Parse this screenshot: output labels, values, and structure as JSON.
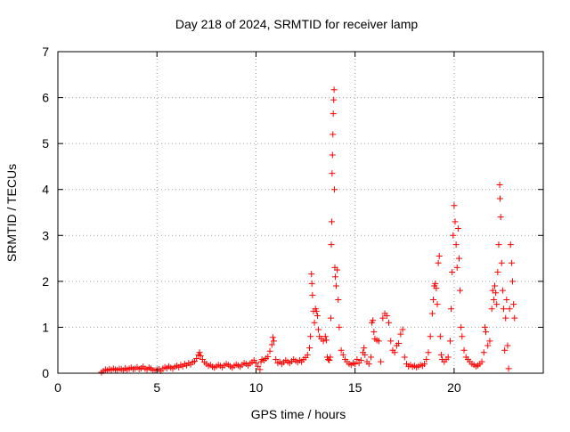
{
  "chart_data": {
    "type": "scatter",
    "title": "Day 218 of 2024, SRMTID for receiver lamp",
    "xlabel": "GPS time / hours",
    "ylabel": "SRMTID / TECUs",
    "xlim": [
      0,
      24.5
    ],
    "ylim": [
      0,
      7
    ],
    "xticks": [
      0,
      5,
      10,
      15,
      20
    ],
    "yticks": [
      0,
      1,
      2,
      3,
      4,
      5,
      6,
      7
    ],
    "xtick_labels": [
      "0",
      "5",
      "10",
      "15",
      "20"
    ],
    "ytick_labels": [
      "0",
      "1",
      "2",
      "3",
      "4",
      "5",
      "6",
      "7"
    ],
    "grid": true,
    "marker": "plus",
    "color": "#ff0000",
    "series": [
      {
        "name": "SRMTID",
        "points": [
          [
            2.2,
            0.02
          ],
          [
            2.3,
            0.05
          ],
          [
            2.4,
            0.08
          ],
          [
            2.5,
            0.06
          ],
          [
            2.6,
            0.09
          ],
          [
            2.7,
            0.07
          ],
          [
            2.8,
            0.1
          ],
          [
            2.9,
            0.08
          ],
          [
            3.0,
            0.07
          ],
          [
            3.1,
            0.1
          ],
          [
            3.2,
            0.09
          ],
          [
            3.3,
            0.06
          ],
          [
            3.4,
            0.11
          ],
          [
            3.5,
            0.08
          ],
          [
            3.6,
            0.1
          ],
          [
            3.7,
            0.12
          ],
          [
            3.8,
            0.09
          ],
          [
            3.9,
            0.1
          ],
          [
            4.0,
            0.13
          ],
          [
            4.1,
            0.09
          ],
          [
            4.2,
            0.11
          ],
          [
            4.3,
            0.14
          ],
          [
            4.4,
            0.1
          ],
          [
            4.5,
            0.08
          ],
          [
            4.6,
            0.12
          ],
          [
            4.7,
            0.1
          ],
          [
            4.8,
            0.07
          ],
          [
            4.9,
            0.06
          ],
          [
            5.0,
            0.08
          ],
          [
            5.1,
            0.09
          ],
          [
            5.2,
            0.05
          ],
          [
            5.3,
            0.1
          ],
          [
            5.4,
            0.13
          ],
          [
            5.5,
            0.11
          ],
          [
            5.6,
            0.15
          ],
          [
            5.7,
            0.12
          ],
          [
            5.8,
            0.1
          ],
          [
            5.9,
            0.14
          ],
          [
            6.0,
            0.16
          ],
          [
            6.1,
            0.13
          ],
          [
            6.2,
            0.18
          ],
          [
            6.3,
            0.15
          ],
          [
            6.4,
            0.2
          ],
          [
            6.5,
            0.17
          ],
          [
            6.6,
            0.22
          ],
          [
            6.7,
            0.19
          ],
          [
            6.8,
            0.24
          ],
          [
            6.9,
            0.26
          ],
          [
            7.0,
            0.32
          ],
          [
            7.1,
            0.4
          ],
          [
            7.15,
            0.45
          ],
          [
            7.2,
            0.38
          ],
          [
            7.3,
            0.3
          ],
          [
            7.4,
            0.24
          ],
          [
            7.5,
            0.2
          ],
          [
            7.6,
            0.16
          ],
          [
            7.7,
            0.18
          ],
          [
            7.8,
            0.14
          ],
          [
            7.9,
            0.12
          ],
          [
            8.0,
            0.15
          ],
          [
            8.1,
            0.18
          ],
          [
            8.2,
            0.16
          ],
          [
            8.3,
            0.13
          ],
          [
            8.4,
            0.17
          ],
          [
            8.5,
            0.2
          ],
          [
            8.6,
            0.18
          ],
          [
            8.7,
            0.15
          ],
          [
            8.8,
            0.12
          ],
          [
            8.9,
            0.16
          ],
          [
            9.0,
            0.19
          ],
          [
            9.1,
            0.17
          ],
          [
            9.2,
            0.14
          ],
          [
            9.3,
            0.18
          ],
          [
            9.4,
            0.22
          ],
          [
            9.5,
            0.2
          ],
          [
            9.6,
            0.17
          ],
          [
            9.7,
            0.21
          ],
          [
            9.8,
            0.24
          ],
          [
            9.9,
            0.28
          ],
          [
            10.0,
            0.22
          ],
          [
            10.1,
            0.15
          ],
          [
            10.2,
            0.08
          ],
          [
            10.25,
            0.25
          ],
          [
            10.3,
            0.3
          ],
          [
            10.4,
            0.28
          ],
          [
            10.5,
            0.32
          ],
          [
            10.6,
            0.36
          ],
          [
            10.7,
            0.48
          ],
          [
            10.8,
            0.62
          ],
          [
            10.85,
            0.78
          ],
          [
            10.9,
            0.7
          ],
          [
            11.0,
            0.3
          ],
          [
            11.1,
            0.22
          ],
          [
            11.2,
            0.25
          ],
          [
            11.3,
            0.2
          ],
          [
            11.4,
            0.24
          ],
          [
            11.5,
            0.28
          ],
          [
            11.6,
            0.25
          ],
          [
            11.7,
            0.22
          ],
          [
            11.8,
            0.26
          ],
          [
            11.9,
            0.3
          ],
          [
            12.0,
            0.27
          ],
          [
            12.1,
            0.24
          ],
          [
            12.2,
            0.28
          ],
          [
            12.3,
            0.25
          ],
          [
            12.4,
            0.3
          ],
          [
            12.5,
            0.34
          ],
          [
            12.6,
            0.4
          ],
          [
            12.7,
            0.55
          ],
          [
            12.75,
            0.8
          ],
          [
            12.8,
            2.16
          ],
          [
            12.82,
            1.95
          ],
          [
            12.85,
            1.7
          ],
          [
            12.9,
            1.35
          ],
          [
            12.95,
            1.1
          ],
          [
            13.0,
            1.4
          ],
          [
            13.05,
            1.35
          ],
          [
            13.1,
            1.25
          ],
          [
            13.15,
            0.95
          ],
          [
            13.2,
            0.8
          ],
          [
            13.3,
            0.75
          ],
          [
            13.4,
            0.7
          ],
          [
            13.5,
            0.8
          ],
          [
            13.55,
            0.72
          ],
          [
            13.6,
            0.35
          ],
          [
            13.65,
            0.3
          ],
          [
            13.7,
            0.28
          ],
          [
            13.75,
            0.35
          ],
          [
            13.78,
            1.2
          ],
          [
            13.8,
            2.8
          ],
          [
            13.82,
            3.3
          ],
          [
            13.84,
            4.35
          ],
          [
            13.86,
            4.75
          ],
          [
            13.88,
            5.2
          ],
          [
            13.9,
            5.65
          ],
          [
            13.92,
            5.95
          ],
          [
            13.94,
            6.17
          ],
          [
            13.96,
            4.0
          ],
          [
            13.98,
            2.3
          ],
          [
            14.0,
            2.1
          ],
          [
            14.05,
            1.9
          ],
          [
            14.1,
            2.25
          ],
          [
            14.15,
            1.6
          ],
          [
            14.2,
            1.0
          ],
          [
            14.3,
            0.5
          ],
          [
            14.4,
            0.4
          ],
          [
            14.5,
            0.3
          ],
          [
            14.6,
            0.25
          ],
          [
            14.7,
            0.2
          ],
          [
            14.8,
            0.18
          ],
          [
            14.9,
            0.22
          ],
          [
            15.0,
            0.2
          ],
          [
            15.1,
            0.3
          ],
          [
            15.2,
            0.22
          ],
          [
            15.3,
            0.28
          ],
          [
            15.4,
            0.45
          ],
          [
            15.45,
            0.55
          ],
          [
            15.5,
            0.4
          ],
          [
            15.6,
            0.25
          ],
          [
            15.7,
            0.2
          ],
          [
            15.8,
            0.35
          ],
          [
            15.85,
            1.1
          ],
          [
            15.9,
            1.15
          ],
          [
            15.95,
            0.9
          ],
          [
            16.0,
            0.75
          ],
          [
            16.1,
            0.72
          ],
          [
            16.2,
            0.7
          ],
          [
            16.3,
            0.25
          ],
          [
            16.4,
            1.2
          ],
          [
            16.5,
            1.3
          ],
          [
            16.6,
            1.25
          ],
          [
            16.7,
            1.1
          ],
          [
            16.8,
            0.7
          ],
          [
            16.9,
            0.5
          ],
          [
            17.0,
            0.45
          ],
          [
            17.1,
            0.6
          ],
          [
            17.2,
            0.65
          ],
          [
            17.3,
            0.85
          ],
          [
            17.4,
            0.95
          ],
          [
            17.5,
            0.35
          ],
          [
            17.6,
            0.2
          ],
          [
            17.7,
            0.15
          ],
          [
            17.8,
            0.18
          ],
          [
            17.9,
            0.14
          ],
          [
            18.0,
            0.16
          ],
          [
            18.1,
            0.13
          ],
          [
            18.2,
            0.15
          ],
          [
            18.3,
            0.18
          ],
          [
            18.4,
            0.16
          ],
          [
            18.5,
            0.2
          ],
          [
            18.6,
            0.3
          ],
          [
            18.7,
            0.45
          ],
          [
            18.8,
            0.8
          ],
          [
            18.9,
            1.3
          ],
          [
            18.95,
            1.6
          ],
          [
            19.0,
            1.9
          ],
          [
            19.05,
            1.95
          ],
          [
            19.1,
            1.85
          ],
          [
            19.15,
            1.5
          ],
          [
            19.2,
            2.4
          ],
          [
            19.25,
            2.55
          ],
          [
            19.3,
            0.8
          ],
          [
            19.35,
            0.4
          ],
          [
            19.4,
            0.3
          ],
          [
            19.5,
            0.25
          ],
          [
            19.6,
            0.3
          ],
          [
            19.7,
            0.35
          ],
          [
            19.8,
            0.7
          ],
          [
            19.85,
            1.4
          ],
          [
            19.9,
            2.2
          ],
          [
            19.95,
            3.0
          ],
          [
            20.0,
            3.65
          ],
          [
            20.05,
            3.3
          ],
          [
            20.1,
            2.8
          ],
          [
            20.15,
            2.3
          ],
          [
            20.2,
            3.15
          ],
          [
            20.25,
            2.5
          ],
          [
            20.3,
            1.8
          ],
          [
            20.35,
            1.0
          ],
          [
            20.4,
            0.8
          ],
          [
            20.5,
            0.5
          ],
          [
            20.6,
            0.35
          ],
          [
            20.7,
            0.3
          ],
          [
            20.8,
            0.25
          ],
          [
            20.9,
            0.2
          ],
          [
            21.0,
            0.18
          ],
          [
            21.1,
            0.15
          ],
          [
            21.2,
            0.17
          ],
          [
            21.3,
            0.2
          ],
          [
            21.4,
            0.25
          ],
          [
            21.5,
            0.45
          ],
          [
            21.55,
            1.0
          ],
          [
            21.6,
            0.9
          ],
          [
            21.7,
            0.6
          ],
          [
            21.8,
            0.7
          ],
          [
            21.9,
            1.4
          ],
          [
            21.95,
            1.8
          ],
          [
            22.0,
            1.6
          ],
          [
            22.05,
            1.9
          ],
          [
            22.1,
            1.75
          ],
          [
            22.15,
            1.5
          ],
          [
            22.2,
            2.2
          ],
          [
            22.25,
            2.8
          ],
          [
            22.3,
            4.1
          ],
          [
            22.32,
            3.8
          ],
          [
            22.35,
            3.4
          ],
          [
            22.4,
            2.4
          ],
          [
            22.45,
            1.8
          ],
          [
            22.5,
            1.4
          ],
          [
            22.55,
            0.5
          ],
          [
            22.6,
            1.2
          ],
          [
            22.65,
            1.6
          ],
          [
            22.7,
            0.6
          ],
          [
            22.75,
            0.1
          ],
          [
            22.8,
            1.4
          ],
          [
            22.85,
            2.8
          ],
          [
            22.9,
            2.4
          ],
          [
            22.95,
            2.0
          ],
          [
            23.0,
            1.5
          ],
          [
            23.05,
            1.2
          ]
        ]
      }
    ]
  }
}
